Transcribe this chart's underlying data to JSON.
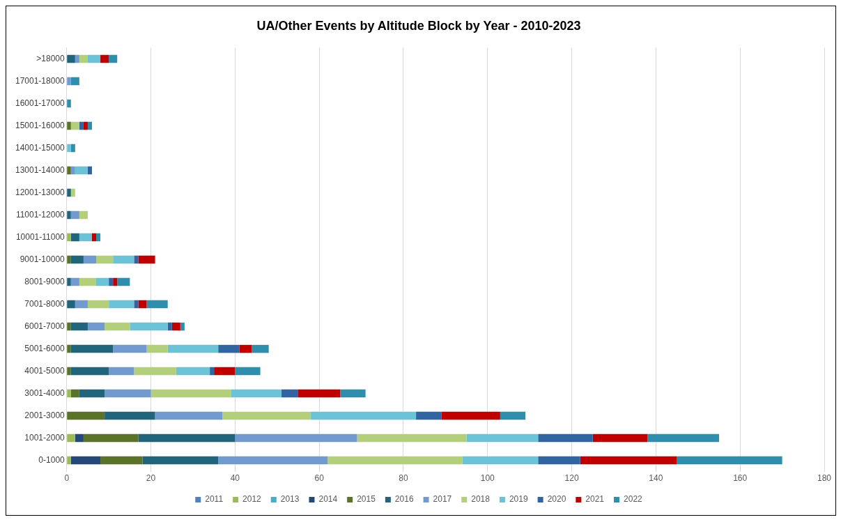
{
  "chart_data": {
    "type": "bar",
    "title": "UA/Other Events by Altitude Block by Year - 2010-2023",
    "orientation": "horizontal",
    "stacked": true,
    "categories": [
      ">18000",
      "17001-18000",
      "16001-17000",
      "15001-16000",
      "14001-15000",
      "13001-14000",
      "12001-13000",
      "11001-12000",
      "10001-11000",
      "9001-10000",
      "8001-9000",
      "7001-8000",
      "6001-7000",
      "5001-6000",
      "4001-5000",
      "3001-4000",
      "2001-3000",
      "1001-2000",
      "0-1000"
    ],
    "series": [
      {
        "name": "2011",
        "color": "#4f81bd",
        "values": [
          null,
          null,
          null,
          null,
          null,
          null,
          null,
          null,
          null,
          null,
          null,
          null,
          null,
          null,
          null,
          null,
          null,
          null,
          null
        ]
      },
      {
        "name": "2012",
        "color": "#9bbb59",
        "values": [
          null,
          null,
          null,
          null,
          null,
          null,
          null,
          null,
          1,
          null,
          null,
          null,
          null,
          null,
          null,
          1,
          null,
          2,
          1
        ]
      },
      {
        "name": "2013",
        "color": "#4bacc6",
        "values": [
          null,
          null,
          null,
          null,
          null,
          null,
          null,
          null,
          null,
          null,
          null,
          null,
          null,
          null,
          null,
          null,
          null,
          null,
          null
        ]
      },
      {
        "name": "2014",
        "color": "#254878",
        "values": [
          null,
          null,
          null,
          null,
          null,
          null,
          null,
          null,
          null,
          null,
          null,
          null,
          null,
          null,
          null,
          null,
          null,
          2,
          7
        ]
      },
      {
        "name": "2015",
        "color": "#5a7229",
        "values": [
          null,
          null,
          null,
          1,
          null,
          1,
          null,
          null,
          null,
          1,
          null,
          null,
          1,
          1,
          1,
          2,
          9,
          13,
          10
        ]
      },
      {
        "name": "2016",
        "color": "#22657b",
        "values": [
          2,
          null,
          null,
          null,
          null,
          null,
          1,
          1,
          2,
          3,
          1,
          2,
          4,
          10,
          9,
          6,
          12,
          23,
          18
        ]
      },
      {
        "name": "2017",
        "color": "#729acf",
        "values": [
          1,
          1,
          null,
          null,
          null,
          1,
          null,
          2,
          null,
          3,
          2,
          3,
          4,
          8,
          6,
          11,
          16,
          29,
          26
        ]
      },
      {
        "name": "2018",
        "color": "#b3cf7c",
        "values": [
          2,
          null,
          null,
          2,
          null,
          null,
          1,
          2,
          null,
          4,
          4,
          5,
          6,
          5,
          10,
          19,
          21,
          26,
          32
        ]
      },
      {
        "name": "2019",
        "color": "#6cc3d6",
        "values": [
          3,
          null,
          null,
          null,
          1,
          3,
          null,
          null,
          3,
          5,
          3,
          6,
          9,
          12,
          8,
          12,
          25,
          17,
          18
        ]
      },
      {
        "name": "2020",
        "color": "#3264a0",
        "values": [
          null,
          null,
          null,
          1,
          null,
          1,
          null,
          null,
          null,
          1,
          1,
          1,
          1,
          5,
          1,
          4,
          6,
          13,
          10
        ]
      },
      {
        "name": "2021",
        "color": "#c00000",
        "values": [
          2,
          null,
          null,
          1,
          null,
          null,
          null,
          null,
          1,
          4,
          1,
          2,
          2,
          3,
          5,
          10,
          14,
          13,
          23
        ]
      },
      {
        "name": "2022",
        "color": "#2e8eac",
        "values": [
          2,
          2,
          1,
          1,
          1,
          null,
          null,
          null,
          1,
          null,
          3,
          5,
          1,
          4,
          6,
          6,
          6,
          17,
          25
        ]
      }
    ],
    "xlim": [
      0,
      180
    ],
    "xticks": [
      0,
      20,
      40,
      60,
      80,
      100,
      120,
      140,
      160,
      180
    ],
    "grid": "x",
    "legend": "bottom"
  }
}
